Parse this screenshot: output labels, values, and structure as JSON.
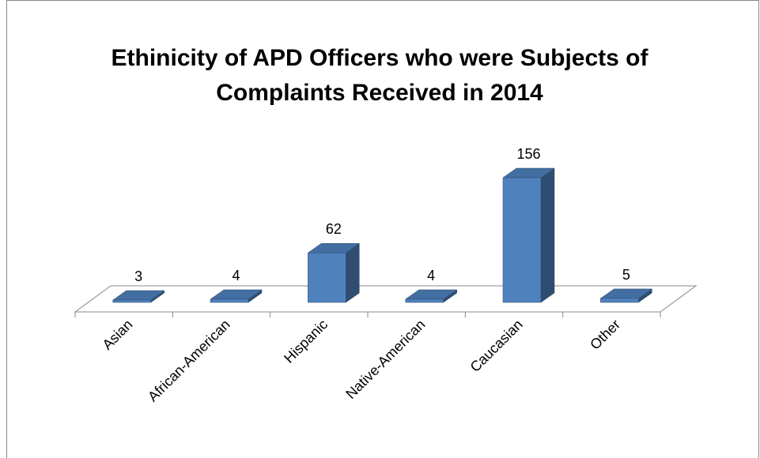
{
  "chart_data": {
    "type": "bar3d",
    "title": "Ethinicity of APD Officers who were Subjects of Complaints Received in 2014",
    "categories": [
      "Asian",
      "African-American",
      "Hispanic",
      "Native-American",
      "Caucasian",
      "Other"
    ],
    "values": [
      3,
      4,
      62,
      4,
      156,
      5
    ],
    "color": "#4f81bd"
  }
}
